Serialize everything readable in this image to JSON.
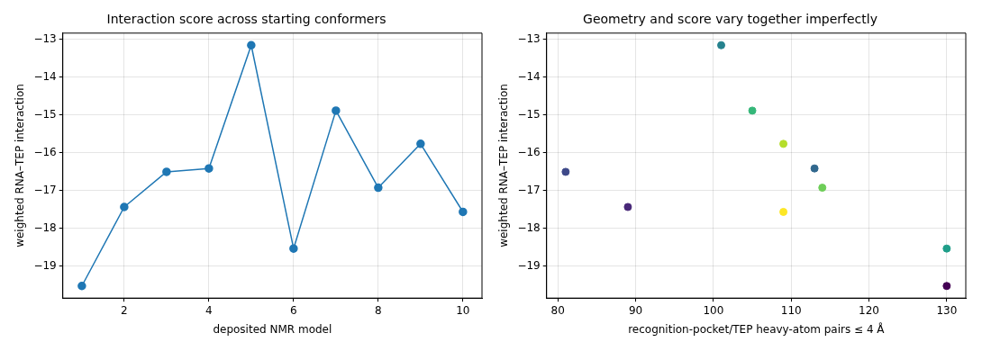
{
  "chart_data": [
    {
      "type": "line",
      "title": "Interaction score across starting conformers",
      "xlabel": "deposited NMR model",
      "ylabel": "weighted RNA–TEP interaction",
      "x": [
        1,
        2,
        3,
        4,
        5,
        6,
        7,
        8,
        9,
        10
      ],
      "series": [
        {
          "color": "#1f77b4",
          "values": [
            -19.53,
            -17.44,
            -16.51,
            -16.42,
            -13.16,
            -18.54,
            -14.89,
            -16.93,
            -15.77,
            -17.57
          ]
        }
      ],
      "xlim": [
        0.55,
        10.45
      ],
      "xticks": [
        2,
        4,
        6,
        8,
        10
      ],
      "ylim": [
        -19.85,
        -12.84
      ],
      "yticks": [
        -19,
        -18,
        -17,
        -16,
        -15,
        -14,
        -13
      ],
      "grid": true,
      "marker": "circle",
      "line_style": "solid"
    },
    {
      "type": "scatter",
      "title": "Geometry and score vary together imperfectly",
      "xlabel": "recognition-pocket/TEP heavy-atom pairs ≤ 4 Å",
      "ylabel": "weighted RNA–TEP interaction",
      "x": [
        130,
        89,
        81,
        113,
        101,
        130,
        105,
        114,
        109,
        109
      ],
      "values": [
        -19.53,
        -17.44,
        -16.51,
        -16.42,
        -13.16,
        -18.54,
        -14.89,
        -16.93,
        -15.77,
        -17.57
      ],
      "colors": [
        "#440154",
        "#482878",
        "#3e4989",
        "#31688e",
        "#26828e",
        "#1f9e89",
        "#35b779",
        "#6ece58",
        "#b5de2b",
        "#fde725"
      ],
      "xlim": [
        78.55,
        132.45
      ],
      "xticks": [
        80,
        90,
        100,
        110,
        120,
        130
      ],
      "ylim": [
        -19.85,
        -12.84
      ],
      "yticks": [
        -19,
        -18,
        -17,
        -16,
        -15,
        -14,
        -13
      ],
      "grid": true,
      "marker": "circle"
    }
  ]
}
